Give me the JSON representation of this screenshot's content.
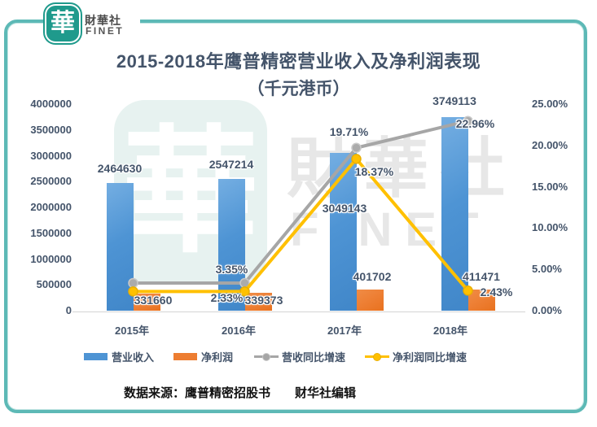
{
  "header": {
    "logo_glyph": "華",
    "brand_cn": "財華社",
    "brand_en": "FINET"
  },
  "title": {
    "line1": "2015-2018年鹰普精密营业收入及净利润表现",
    "line2": "（千元港币）"
  },
  "watermark": {
    "glyph": "華",
    "text_cn": "財華社",
    "text_en": "FINET"
  },
  "source": {
    "label": "数据来源：鹰普精密招股书",
    "editor": "财华社编辑"
  },
  "chart_data": {
    "type": "bar",
    "subtype": "combo bar+line, dual axis",
    "title": "2015-2018年鹰普精密营业收入及净利润表现（千元港币）",
    "categories": [
      "2015年",
      "2016年",
      "2017年",
      "2018年"
    ],
    "bar_series": [
      {
        "name": "营业收入",
        "color": "#4E94D4",
        "values": [
          2464630,
          2547214,
          3049143,
          3749113
        ],
        "labels": [
          "2464630",
          "2547214",
          "3049143",
          "3749113"
        ]
      },
      {
        "name": "净利润",
        "color": "#ED7D31",
        "values": [
          331660,
          339373,
          401702,
          411471
        ],
        "labels": [
          "331660",
          "339373",
          "401702",
          "411471"
        ]
      }
    ],
    "line_series": [
      {
        "name": "营收同比增速",
        "color": "#A6A6A6",
        "marker_fill": "#ABABAB",
        "values_pct": [
          3.35,
          3.35,
          19.71,
          22.96
        ],
        "labels": [
          "",
          "3.35%",
          "19.71%",
          "22.96%"
        ]
      },
      {
        "name": "净利润同比增速",
        "color": "#FFC000",
        "marker_fill": "#FFC000",
        "values_pct": [
          2.33,
          2.33,
          18.37,
          2.43
        ],
        "labels": [
          "",
          "2.33%",
          "18.37%",
          "2.43%"
        ]
      }
    ],
    "left_axis": {
      "min": 0,
      "max": 4000000,
      "step": 500000,
      "ticks": [
        "0",
        "500000",
        "1000000",
        "1500000",
        "2000000",
        "2500000",
        "3000000",
        "3500000",
        "4000000"
      ]
    },
    "right_axis": {
      "min": 0,
      "max": 25,
      "step": 5,
      "ticks": [
        "0.00%",
        "5.00%",
        "10.00%",
        "15.00%",
        "20.00%",
        "25.00%"
      ]
    },
    "legend_position": "bottom",
    "grid": false
  }
}
